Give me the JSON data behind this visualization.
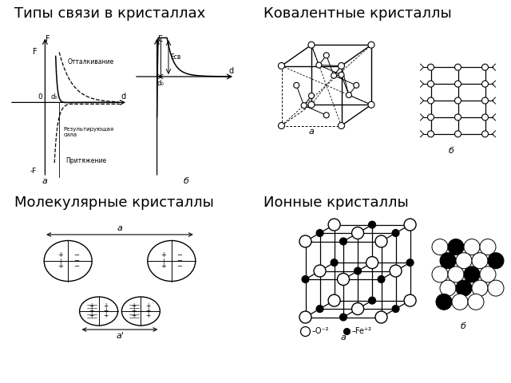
{
  "title_top_left": "Типы связи в кристаллах",
  "title_top_right": "Ковалентные кристаллы",
  "title_bottom_left": "Молекулярные кристаллы",
  "title_bottom_right": "Ионные кристаллы",
  "bg_color": "#ffffff",
  "text_color": "#000000",
  "title_fontsize": 13,
  "label_fontsize": 8,
  "small_fontsize": 6.5
}
